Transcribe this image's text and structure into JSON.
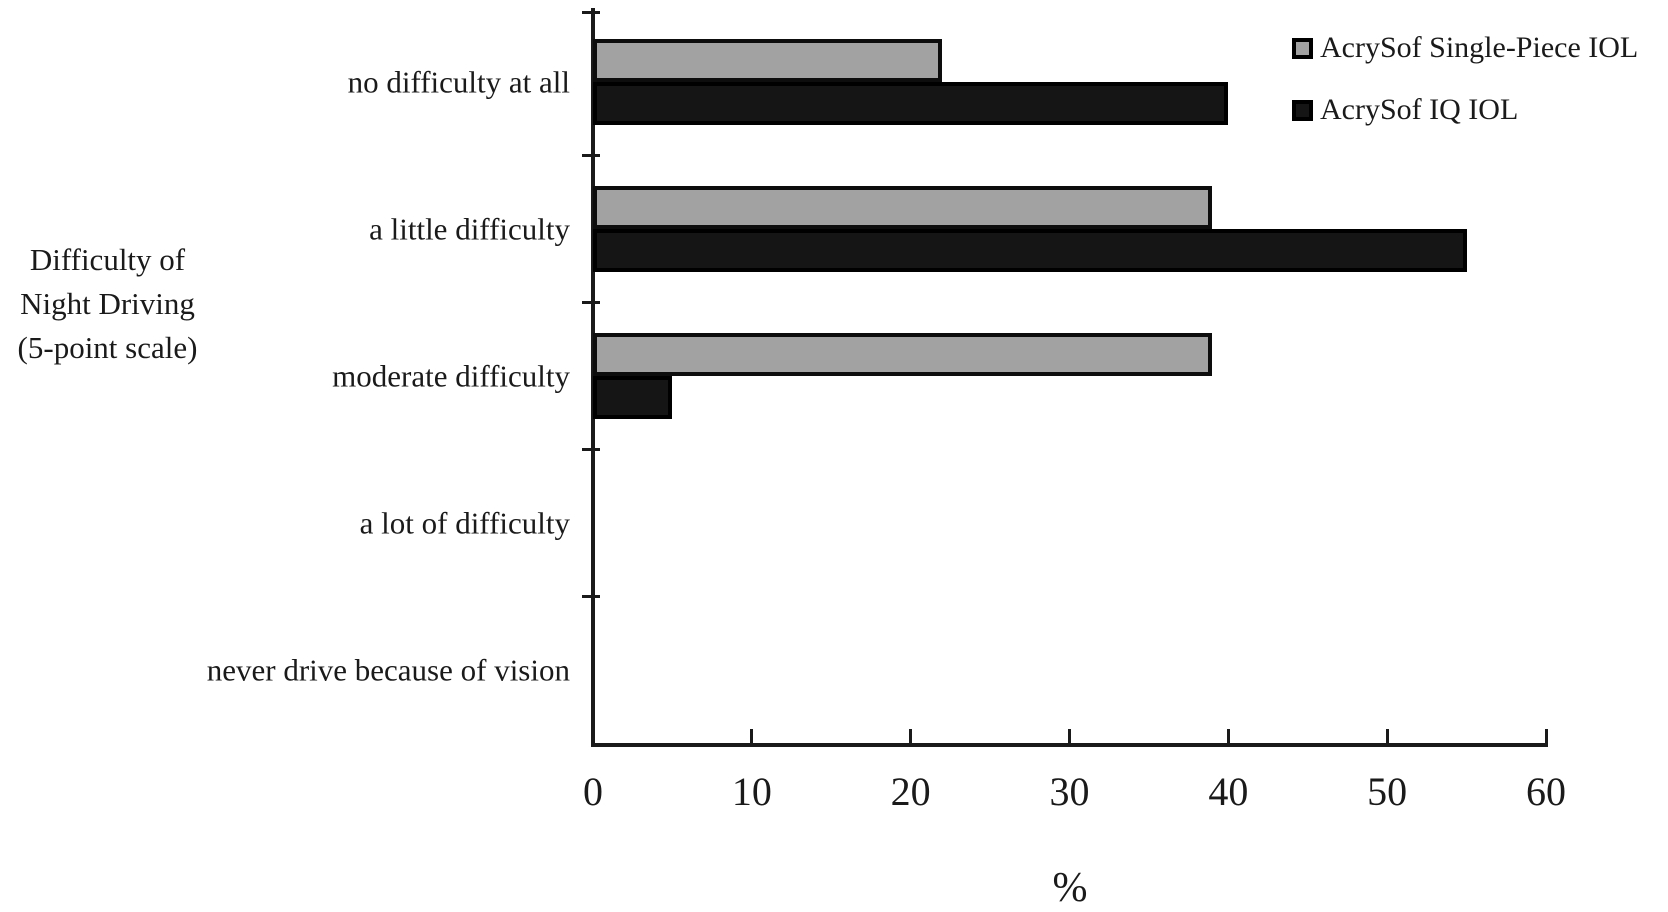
{
  "chart_data": {
    "type": "bar",
    "orientation": "horizontal",
    "categories": [
      "no difficulty at all",
      "a little difficulty",
      "moderate difficulty",
      "a lot of difficulty",
      "never drive because of vision"
    ],
    "series": [
      {
        "name": "AcrySof Single-Piece IOL",
        "color": "#a2a2a2",
        "values": [
          22,
          39,
          39,
          0,
          0
        ]
      },
      {
        "name": "AcrySof IQ IOL",
        "color": "#151515",
        "values": [
          40,
          55,
          5,
          0,
          0
        ]
      }
    ],
    "xlabel": "%",
    "ylabel": "Difficulty of Night Driving (5-point scale)",
    "ylabel_lines": [
      "Difficulty of",
      "Night Driving",
      "(5-point scale)"
    ],
    "xlim": [
      0,
      60
    ],
    "xticks": [
      0,
      10,
      20,
      30,
      40,
      50,
      60
    ],
    "unit": "percent",
    "grid": false,
    "legend_position": "top-right"
  }
}
